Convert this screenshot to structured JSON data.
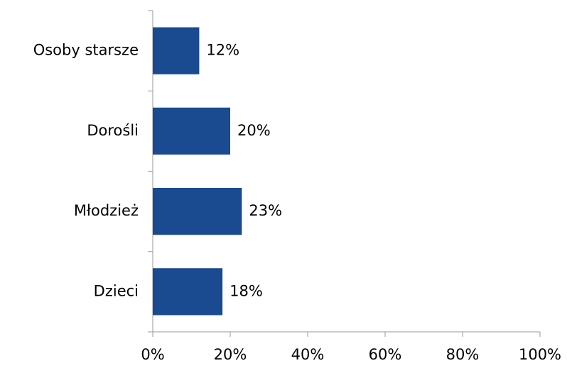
{
  "chart_data": {
    "type": "bar",
    "orientation": "horizontal",
    "categories": [
      "Osoby starsze",
      "Dorośli",
      "Młodzież",
      "Dzieci"
    ],
    "values": [
      12,
      20,
      23,
      18
    ],
    "value_labels": [
      "12%",
      "20%",
      "23%",
      "18%"
    ],
    "color": "#1a4a8f",
    "xlim": [
      0,
      100
    ],
    "xticks": [
      {
        "value": 0,
        "label": "0%"
      },
      {
        "value": 20,
        "label": "20%"
      },
      {
        "value": 40,
        "label": "40%"
      },
      {
        "value": 60,
        "label": "60%"
      },
      {
        "value": 80,
        "label": "80%"
      },
      {
        "value": 100,
        "label": "100%"
      }
    ],
    "grid": false
  }
}
